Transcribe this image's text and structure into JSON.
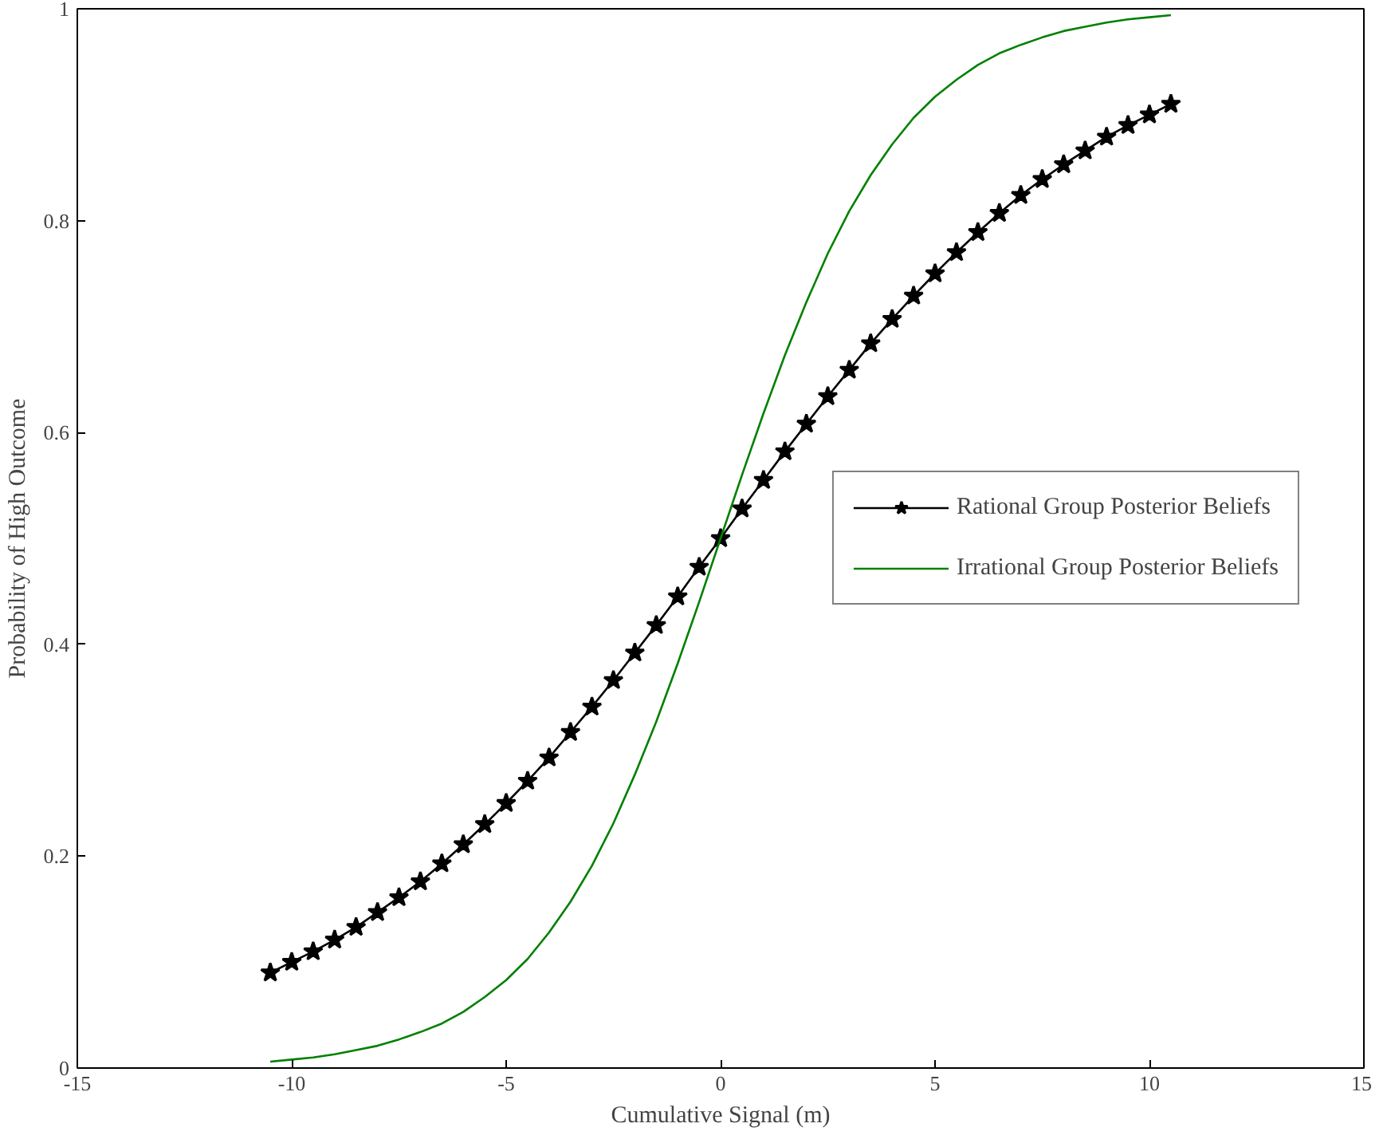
{
  "chart_data": {
    "type": "line",
    "xlabel": "Cumulative Signal (m)",
    "ylabel": "Probability of High Outcome",
    "x": [
      -10.5,
      -10,
      -9.5,
      -9,
      -8.5,
      -8,
      -7.5,
      -7,
      -6.5,
      -6,
      -5.5,
      -5,
      -4.5,
      -4,
      -3.5,
      -3,
      -2.5,
      -2,
      -1.5,
      -1,
      -0.5,
      0,
      0.5,
      1,
      1.5,
      2,
      2.5,
      3,
      3.5,
      4,
      4.5,
      5,
      5.5,
      6,
      6.5,
      7,
      7.5,
      8,
      8.5,
      9,
      9.5,
      10,
      10.5
    ],
    "series": [
      {
        "name": "Rational Group Posterior Beliefs",
        "color": "#000000",
        "marker": "star",
        "values": [
          0.09,
          0.1,
          0.11,
          0.121,
          0.133,
          0.147,
          0.161,
          0.176,
          0.193,
          0.211,
          0.23,
          0.25,
          0.271,
          0.293,
          0.317,
          0.341,
          0.366,
          0.392,
          0.418,
          0.445,
          0.473,
          0.5,
          0.528,
          0.555,
          0.582,
          0.608,
          0.634,
          0.659,
          0.684,
          0.707,
          0.729,
          0.75,
          0.77,
          0.789,
          0.807,
          0.824,
          0.839,
          0.853,
          0.866,
          0.879,
          0.89,
          0.9,
          0.91
        ]
      },
      {
        "name": "Irrational Group Posterior Beliefs",
        "color": "#008000",
        "marker": "none",
        "values": [
          0.006,
          0.008,
          0.01,
          0.013,
          0.017,
          0.021,
          0.027,
          0.034,
          0.042,
          0.053,
          0.067,
          0.083,
          0.103,
          0.128,
          0.157,
          0.191,
          0.231,
          0.277,
          0.327,
          0.382,
          0.44,
          0.5,
          0.56,
          0.618,
          0.673,
          0.723,
          0.769,
          0.809,
          0.843,
          0.872,
          0.897,
          0.917,
          0.933,
          0.947,
          0.958,
          0.966,
          0.973,
          0.979,
          0.983,
          0.987,
          0.99,
          0.992,
          0.994
        ]
      }
    ],
    "xlim": [
      -15,
      15
    ],
    "xticks": [
      -15,
      -10,
      -5,
      0,
      5,
      10,
      15
    ],
    "ylim": [
      0,
      1
    ],
    "yticks": [
      0,
      0.2,
      0.4,
      0.6,
      0.8,
      1
    ],
    "grid": false,
    "legend": "right"
  }
}
